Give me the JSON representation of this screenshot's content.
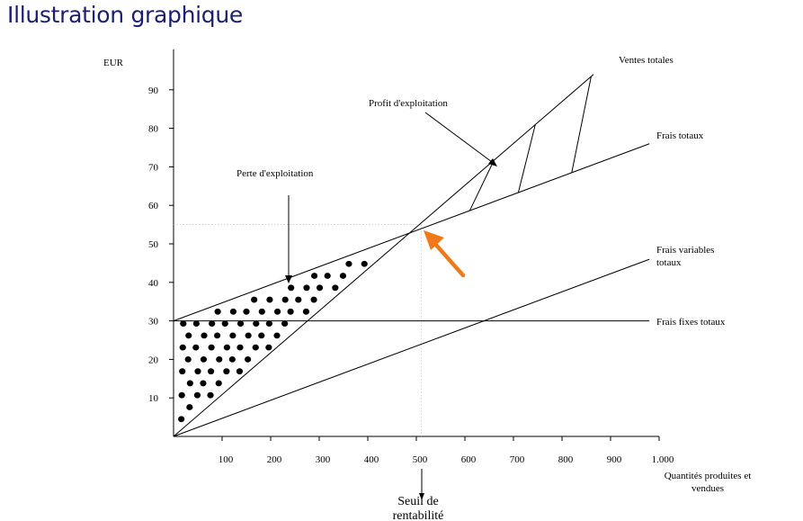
{
  "page": {
    "title": "Illustration graphique"
  },
  "chart_data": {
    "type": "line",
    "title": "",
    "ylabel": "EUR",
    "xlabel": "Quantités produites et vendues",
    "xlabel_lines": [
      "Quantités produites et",
      "vendues"
    ],
    "xlim": [
      0,
      1000
    ],
    "ylim": [
      0,
      100
    ],
    "x_ticks": [
      {
        "value": 100,
        "label": "100"
      },
      {
        "value": 200,
        "label": "200"
      },
      {
        "value": 300,
        "label": "300"
      },
      {
        "value": 400,
        "label": "400"
      },
      {
        "value": 500,
        "label": "500"
      },
      {
        "value": 600,
        "label": "600"
      },
      {
        "value": 700,
        "label": "700"
      },
      {
        "value": 800,
        "label": "800"
      },
      {
        "value": 900,
        "label": "900"
      },
      {
        "value": 1000,
        "label": "1.000"
      }
    ],
    "y_ticks": [
      {
        "value": 10,
        "label": "10"
      },
      {
        "value": 20,
        "label": "20"
      },
      {
        "value": 30,
        "label": "30"
      },
      {
        "value": 40,
        "label": "40"
      },
      {
        "value": 50,
        "label": "50"
      },
      {
        "value": 60,
        "label": "60"
      },
      {
        "value": 70,
        "label": "70"
      },
      {
        "value": 80,
        "label": "80"
      },
      {
        "value": 90,
        "label": "90"
      }
    ],
    "series": [
      {
        "name": "Ventes totales",
        "label_lines": [
          "Ventes totales"
        ],
        "x": [
          0,
          865
        ],
        "y": [
          0,
          94
        ]
      },
      {
        "name": "Frais totaux",
        "label_lines": [
          "Frais totaux"
        ],
        "x": [
          0,
          980
        ],
        "y": [
          30,
          76
        ]
      },
      {
        "name": "Frais variables totaux",
        "label_lines": [
          "Frais variables",
          "totaux"
        ],
        "x": [
          0,
          980
        ],
        "y": [
          0,
          46
        ]
      },
      {
        "name": "Frais fixes totaux",
        "label_lines": [
          "Frais fixes totaux"
        ],
        "x": [
          0,
          980
        ],
        "y": [
          30,
          30
        ]
      }
    ],
    "break_even": {
      "x": 510,
      "y": 55
    },
    "annotations": {
      "loss": "Perte d'exploitation",
      "profit": "Profit d'exploitation",
      "break_even_lines": [
        "Seuil de",
        "rentabilité"
      ]
    },
    "colors": {
      "lines": "#000000",
      "arrow": "#f07a1a",
      "title": "#1b1f6e"
    }
  }
}
